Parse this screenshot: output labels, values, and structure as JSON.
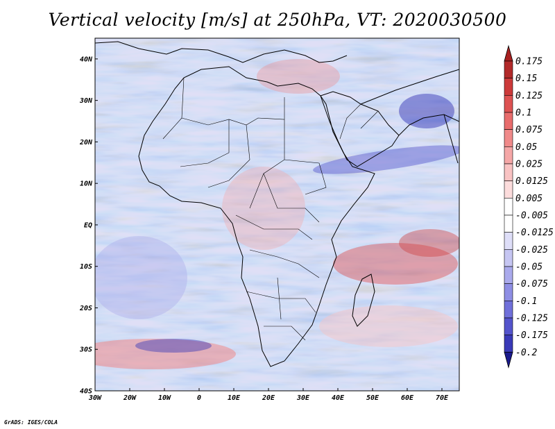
{
  "title": "Vertical velocity [m/s] at 250hPa, VT: 2020030500",
  "credit": "GrADS: IGES/COLA",
  "map": {
    "variable": "Vertical velocity",
    "units": "m/s",
    "level": "250hPa",
    "valid_time": "2020030500",
    "lon_range": [
      -30,
      75
    ],
    "lat_range": [
      -40,
      45
    ],
    "lat_ticks": [
      {
        "value": 40,
        "label": "40N"
      },
      {
        "value": 30,
        "label": "30N"
      },
      {
        "value": 20,
        "label": "20N"
      },
      {
        "value": 10,
        "label": "10N"
      },
      {
        "value": 0,
        "label": "EQ"
      },
      {
        "value": -10,
        "label": "10S"
      },
      {
        "value": -20,
        "label": "20S"
      },
      {
        "value": -30,
        "label": "30S"
      },
      {
        "value": -40,
        "label": "40S"
      }
    ],
    "lon_ticks": [
      {
        "value": -30,
        "label": "30W"
      },
      {
        "value": -20,
        "label": "20W"
      },
      {
        "value": -10,
        "label": "10W"
      },
      {
        "value": 0,
        "label": "0"
      },
      {
        "value": 10,
        "label": "10E"
      },
      {
        "value": 20,
        "label": "20E"
      },
      {
        "value": 30,
        "label": "30E"
      },
      {
        "value": 40,
        "label": "40E"
      },
      {
        "value": 50,
        "label": "50E"
      },
      {
        "value": 60,
        "label": "60E"
      },
      {
        "value": 70,
        "label": "70E"
      }
    ]
  },
  "colorbar": {
    "levels": [
      {
        "label": "0.175",
        "color": "#b22a2a"
      },
      {
        "label": "0.15",
        "color": "#cc3a3a"
      },
      {
        "label": "0.125",
        "color": "#dd5252"
      },
      {
        "label": "0.1",
        "color": "#e86c6c"
      },
      {
        "label": "0.075",
        "color": "#f08a8a"
      },
      {
        "label": "0.05",
        "color": "#f5a7a7"
      },
      {
        "label": "0.025",
        "color": "#f9c3c3"
      },
      {
        "label": "0.0125",
        "color": "#fcdcdc"
      },
      {
        "label": "0.005",
        "color": "#ffffff"
      },
      {
        "label": "-0.005",
        "color": "#ffffff"
      },
      {
        "label": "-0.0125",
        "color": "#dedef8"
      },
      {
        "label": "-0.025",
        "color": "#c6c6f2"
      },
      {
        "label": "-0.05",
        "color": "#aaaaec"
      },
      {
        "label": "-0.075",
        "color": "#8e8ee4"
      },
      {
        "label": "-0.1",
        "color": "#7070da"
      },
      {
        "label": "-0.125",
        "color": "#5454cc"
      },
      {
        "label": "-0.175",
        "color": "#3a3ab8"
      },
      {
        "label": "-0.2",
        "color": "#2222a0"
      }
    ],
    "top_color": "#a82020",
    "bottom_color": "#1a1a8c"
  }
}
